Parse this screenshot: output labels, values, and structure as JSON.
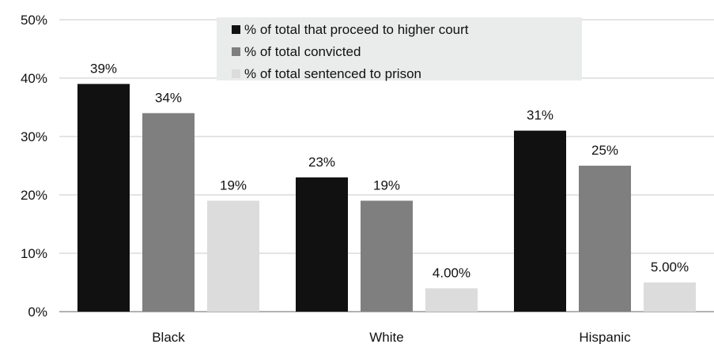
{
  "chart_data": {
    "type": "bar",
    "categories": [
      "Black",
      "White",
      "Hispanic"
    ],
    "series": [
      {
        "name": "% of total that proceed to higher court",
        "values": [
          39,
          23,
          31
        ],
        "labels": [
          "39%",
          "23%",
          "31%"
        ],
        "color": "#111111"
      },
      {
        "name": "% of total convicted",
        "values": [
          34,
          19,
          25
        ],
        "labels": [
          "34%",
          "19%",
          "25%"
        ],
        "color": "#7f7f7f"
      },
      {
        "name": "% of total sentenced to prison",
        "values": [
          19,
          4,
          5
        ],
        "labels": [
          "19%",
          "4.00%",
          "5.00%"
        ],
        "color": "#dcdcdc"
      }
    ],
    "yticks": [
      0,
      10,
      20,
      30,
      40,
      50
    ],
    "ytick_labels": [
      "0%",
      "10%",
      "20%",
      "30%",
      "40%",
      "50%"
    ],
    "ylim": [
      0,
      50
    ],
    "grid": true,
    "legend_position": "top-center",
    "legend_background": "#eaebeb"
  }
}
